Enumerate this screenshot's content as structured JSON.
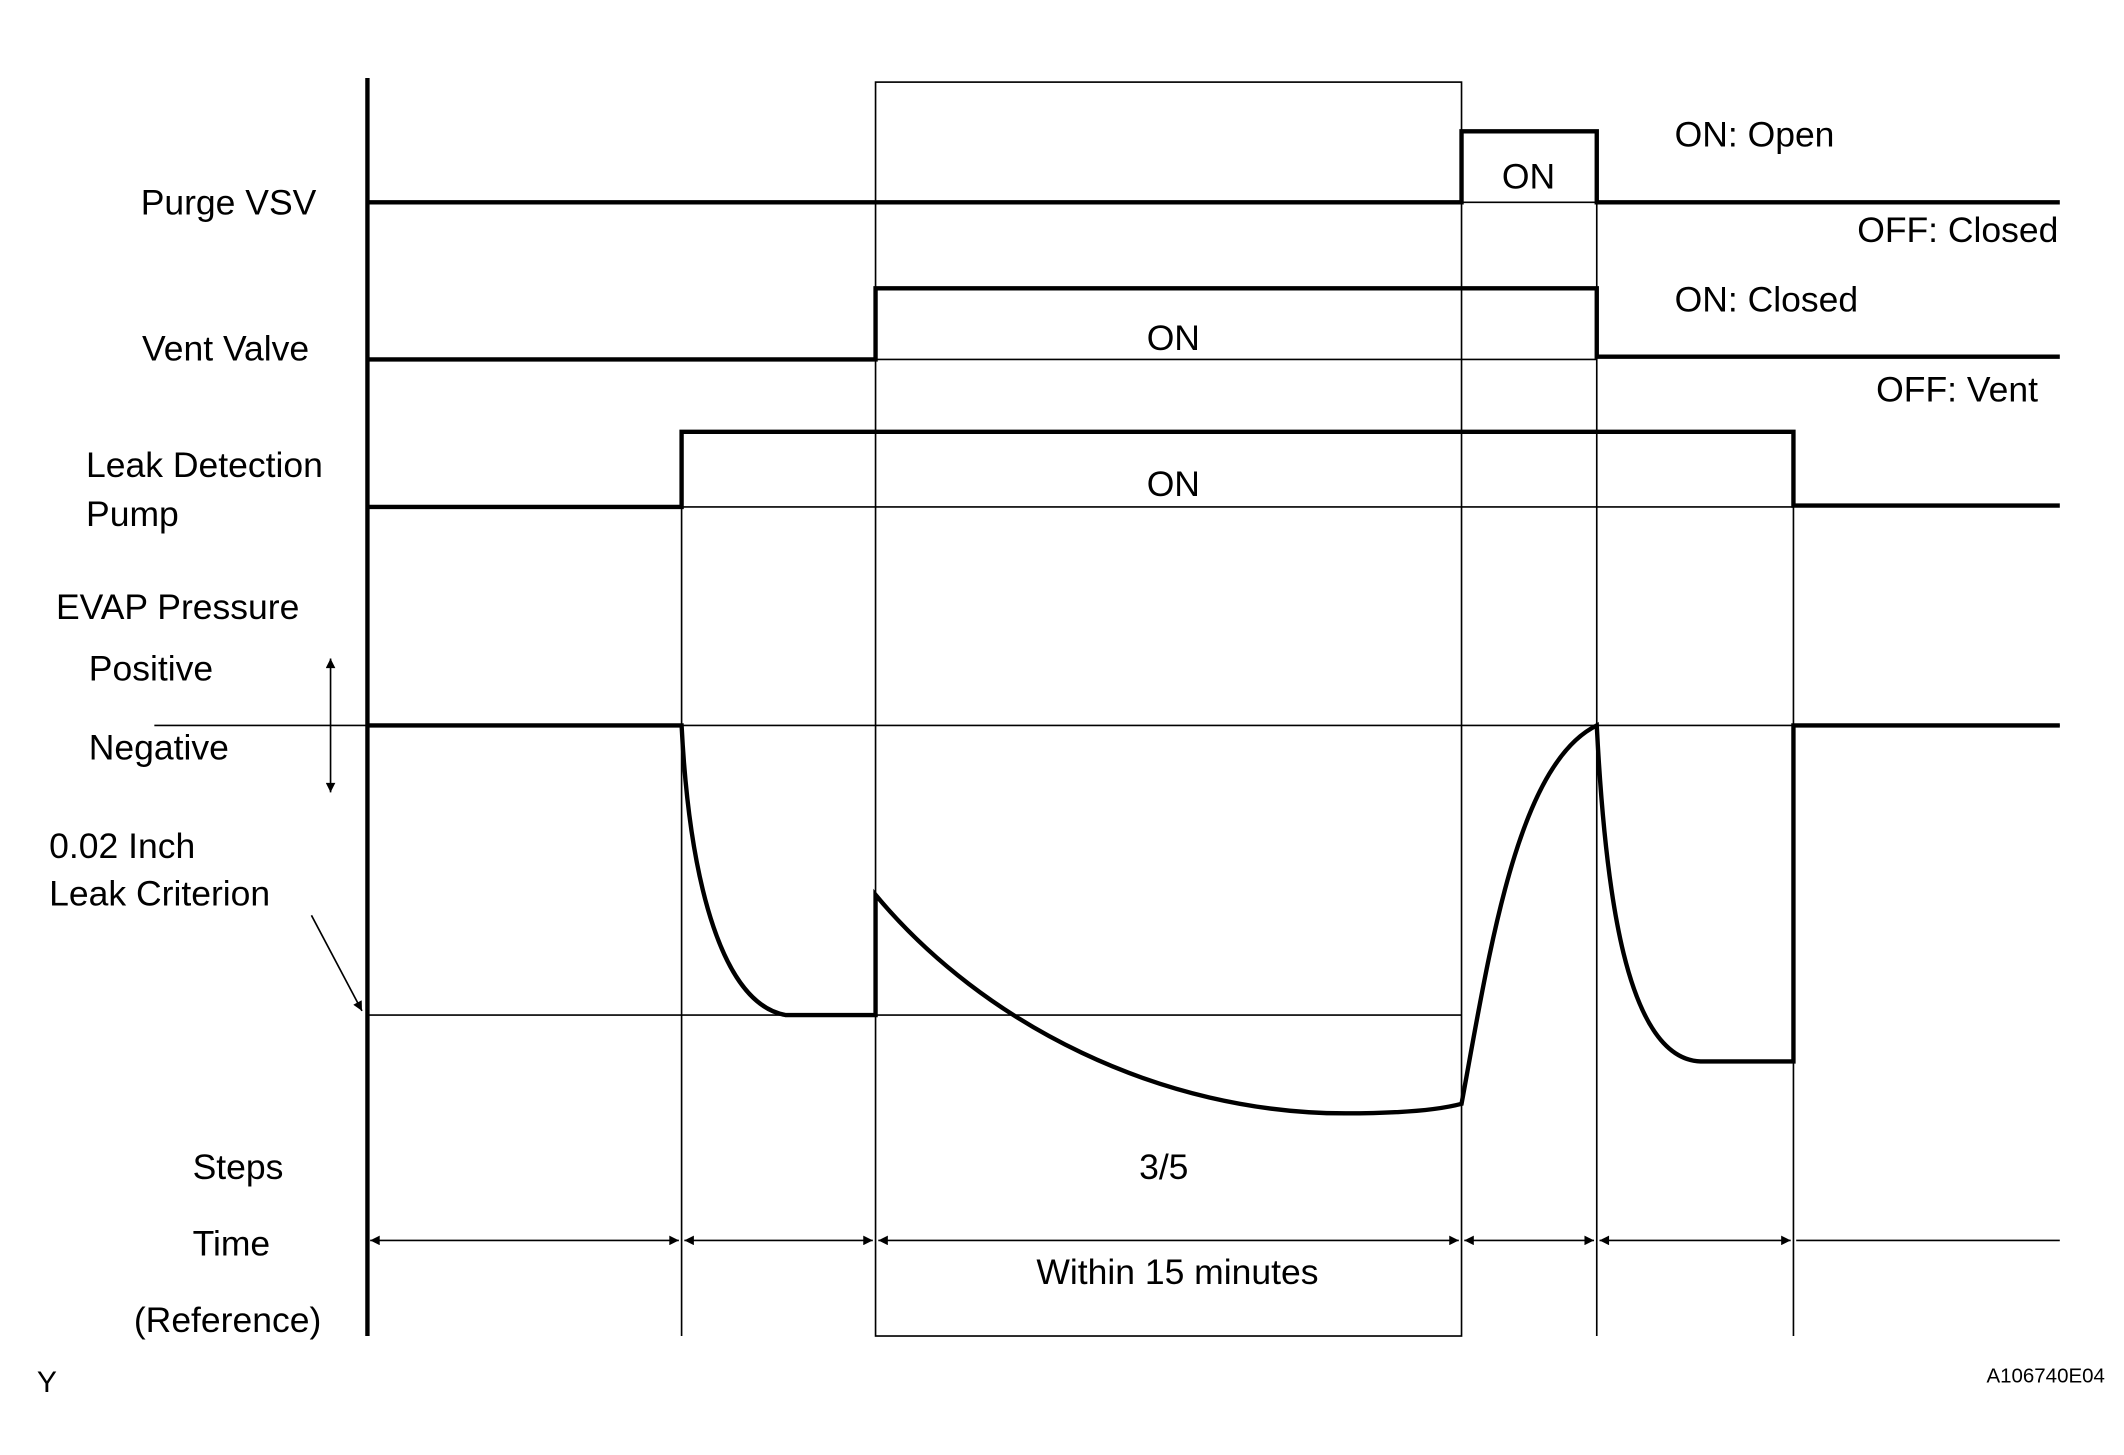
{
  "signals": {
    "purge_vsv": {
      "label": "Purge VSV",
      "on_text": "ON",
      "on_state": "ON: Open",
      "off_state": "OFF: Closed"
    },
    "vent_valve": {
      "label": "Vent Valve",
      "on_text": "ON",
      "on_state": "ON: Closed",
      "off_state": "OFF: Vent"
    },
    "leak_pump": {
      "label_line1": "Leak Detection",
      "label_line2": "Pump",
      "on_text": "ON"
    },
    "evap": {
      "label": "EVAP Pressure",
      "positive": "Positive",
      "negative": "Negative",
      "criterion_line1": "0.02 Inch",
      "criterion_line2": "Leak Criterion"
    }
  },
  "rows": {
    "steps_label": "Steps",
    "step_value": "3/5",
    "time_label": "Time",
    "reference_label": "(Reference)",
    "duration": "Within 15 minutes"
  },
  "footer": {
    "corner_mark": "Y",
    "figure_code": "A106740E04"
  }
}
